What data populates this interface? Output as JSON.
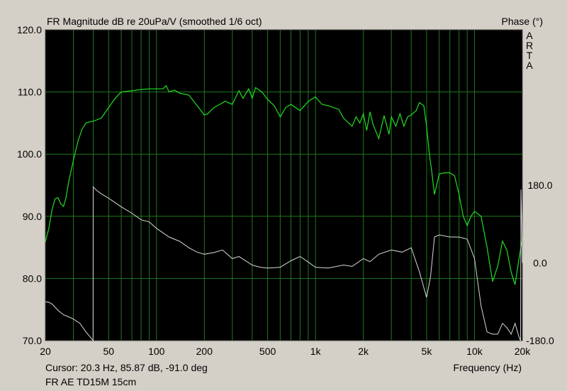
{
  "title": "FR Magnitude dB re 20uPa/V (smoothed 1/6 oct)",
  "phase_title": "Phase (°)",
  "watermark": [
    "A",
    "R",
    "T",
    "A"
  ],
  "cursor_readout": "Cursor: 20.3 Hz, 85.87 dB, -91.0 deg",
  "trace_name": "FR AE TD15M 15cm",
  "chart_data": {
    "type": "line",
    "title": "FR Magnitude dB re 20uPa/V (smoothed 1/6 oct)",
    "xlabel": "Frequency (Hz)",
    "ylabel": "",
    "y2label": "Phase (°)",
    "x_scale": "log",
    "xlim": [
      20,
      20000
    ],
    "ylim": [
      70,
      120
    ],
    "y2lim": [
      -180,
      540
    ],
    "x_ticks": [
      20,
      50,
      100,
      200,
      500,
      1000,
      2000,
      5000,
      10000,
      20000
    ],
    "x_tick_labels": [
      "20",
      "50",
      "100",
      "200",
      "500",
      "1k",
      "2k",
      "5k",
      "10k",
      "20k"
    ],
    "y_ticks": [
      70,
      80,
      90,
      100,
      110,
      120
    ],
    "y_tick_labels": [
      "70.0",
      "80.0",
      "90.0",
      "100.0",
      "110.0",
      "120.0"
    ],
    "y2_ticks": [
      -180,
      0,
      180
    ],
    "y2_tick_labels": [
      "-180.0",
      "0.0",
      "180.0"
    ],
    "grid": true,
    "colors": {
      "background": "#000000",
      "grid": "#1e7a1e",
      "magnitude": "#22dd22",
      "phase": "#d8d8d8",
      "window": "#d4d0c8"
    },
    "series": [
      {
        "axis": "left",
        "x": [
          20,
          21,
          22,
          23,
          24,
          25,
          26,
          27,
          28,
          30,
          32,
          34,
          36,
          38,
          40,
          45,
          50,
          55,
          60,
          70,
          80,
          90,
          100,
          110,
          115,
          120,
          130,
          140,
          160,
          180,
          200,
          210,
          230,
          250,
          270,
          300,
          330,
          350,
          380,
          400,
          420,
          460,
          500,
          550,
          600,
          650,
          700,
          800,
          900,
          1000,
          1100,
          1200,
          1400,
          1500,
          1700,
          1800,
          1900,
          2000,
          2100,
          2200,
          2300,
          2500,
          2700,
          2900,
          3000,
          3200,
          3400,
          3600,
          3800,
          4000,
          4300,
          4500,
          4800,
          5000,
          5200,
          5400,
          5600,
          6000,
          6500,
          7000,
          7500,
          8000,
          8500,
          9000,
          9500,
          10000,
          11000,
          12000,
          13000,
          14000,
          15000,
          16000,
          17000,
          18000,
          19000,
          20000
        ],
        "y": [
          85.9,
          88.0,
          91.0,
          92.8,
          93.0,
          92.0,
          91.6,
          93.0,
          95.5,
          99.0,
          102.0,
          104.0,
          105.0,
          105.2,
          105.3,
          105.8,
          107.5,
          109.0,
          110.0,
          110.2,
          110.4,
          110.5,
          110.5,
          110.5,
          111.0,
          110.0,
          110.3,
          109.8,
          109.5,
          107.8,
          106.3,
          106.5,
          107.5,
          108.0,
          108.5,
          108.0,
          110.2,
          109.0,
          110.5,
          109.0,
          110.7,
          110.0,
          108.8,
          107.8,
          106.0,
          107.5,
          108.0,
          107.0,
          108.5,
          109.2,
          108.0,
          107.8,
          107.2,
          105.8,
          104.5,
          106.0,
          105.0,
          106.5,
          103.8,
          106.8,
          104.8,
          102.5,
          106.2,
          103.2,
          106.0,
          104.5,
          106.5,
          104.5,
          106.0,
          106.3,
          107.0,
          108.3,
          107.8,
          104.5,
          100.0,
          97.0,
          93.5,
          96.8,
          97.0,
          97.0,
          96.5,
          93.5,
          90.0,
          88.5,
          90.0,
          90.8,
          90.0,
          85.0,
          79.5,
          82.0,
          86.0,
          84.5,
          81.0,
          79.0,
          83.0,
          86.5
        ]
      },
      {
        "axis": "right",
        "x": [
          20,
          21,
          22,
          24,
          26,
          28,
          30,
          33,
          36,
          38,
          39.9,
          40,
          42,
          45,
          50,
          60,
          70,
          80,
          90,
          100,
          120,
          140,
          160,
          180,
          200,
          230,
          260,
          300,
          330,
          400,
          450,
          500,
          600,
          700,
          800,
          900,
          1000,
          1200,
          1500,
          1700,
          2000,
          2200,
          2500,
          3000,
          3500,
          4000,
          4500,
          5000,
          5300,
          5600,
          6000,
          7000,
          8000,
          9000,
          10000,
          11000,
          12000,
          13000,
          14000,
          15000,
          16000,
          17000,
          18000,
          19000,
          19500,
          19600,
          19800,
          20000
        ],
        "y": [
          -90,
          -91,
          -95,
          -110,
          -120,
          -125,
          -130,
          -140,
          -160,
          -170,
          -180,
          176,
          168,
          160,
          150,
          130,
          115,
          100,
          95,
          80,
          60,
          50,
          35,
          25,
          20,
          24,
          30,
          10,
          15,
          -5,
          -10,
          -12,
          -10,
          5,
          15,
          2,
          -10,
          -12,
          -5,
          -8,
          10,
          3,
          20,
          30,
          25,
          35,
          -20,
          -80,
          -30,
          60,
          65,
          60,
          60,
          55,
          10,
          -100,
          -160,
          -165,
          -165,
          -140,
          -150,
          -165,
          -140,
          -170,
          -180,
          170,
          100,
          0
        ]
      }
    ]
  }
}
